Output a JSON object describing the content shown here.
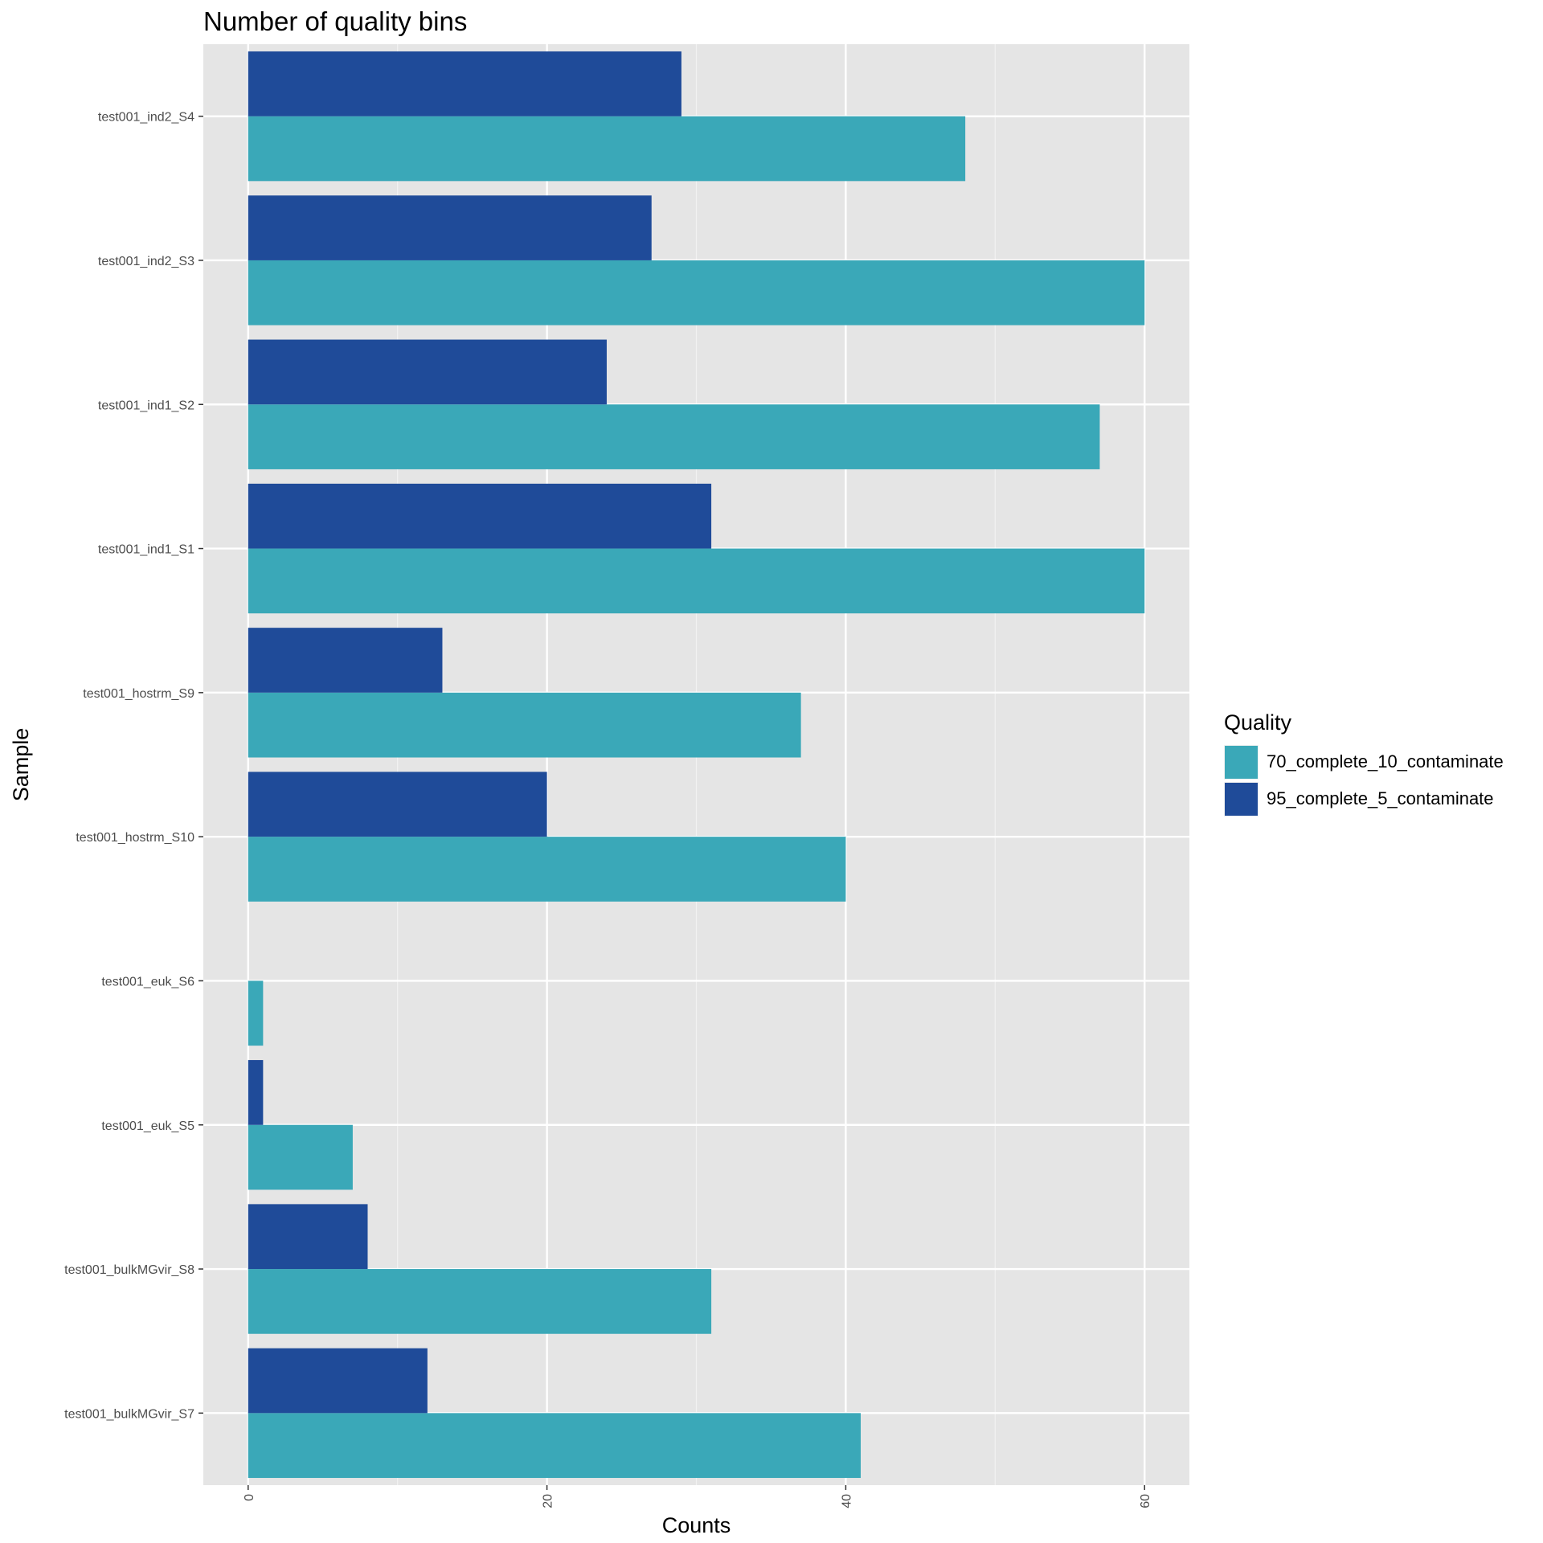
{
  "chart_data": {
    "type": "bar",
    "orientation": "horizontal",
    "title": "Number of quality bins",
    "xlabel": "Counts",
    "ylabel": "Sample",
    "xlim": [
      -3,
      63
    ],
    "xticks": [
      0,
      20,
      40,
      60
    ],
    "grid": true,
    "legend_title": "Quality",
    "legend_position": "right",
    "categories": [
      "test001_bulkMGvir_S7",
      "test001_bulkMGvir_S8",
      "test001_euk_S5",
      "test001_euk_S6",
      "test001_hostrm_S10",
      "test001_hostrm_S9",
      "test001_ind1_S1",
      "test001_ind1_S2",
      "test001_ind2_S3",
      "test001_ind2_S4"
    ],
    "series": [
      {
        "name": "70_complete_10_contaminate",
        "color": "#3aa8b8",
        "values": [
          41,
          31,
          7,
          1,
          40,
          37,
          60,
          57,
          60,
          48
        ]
      },
      {
        "name": "95_complete_5_contaminate",
        "color": "#1f4b99",
        "values": [
          12,
          8,
          1,
          null,
          20,
          13,
          31,
          24,
          27,
          29
        ]
      }
    ]
  }
}
